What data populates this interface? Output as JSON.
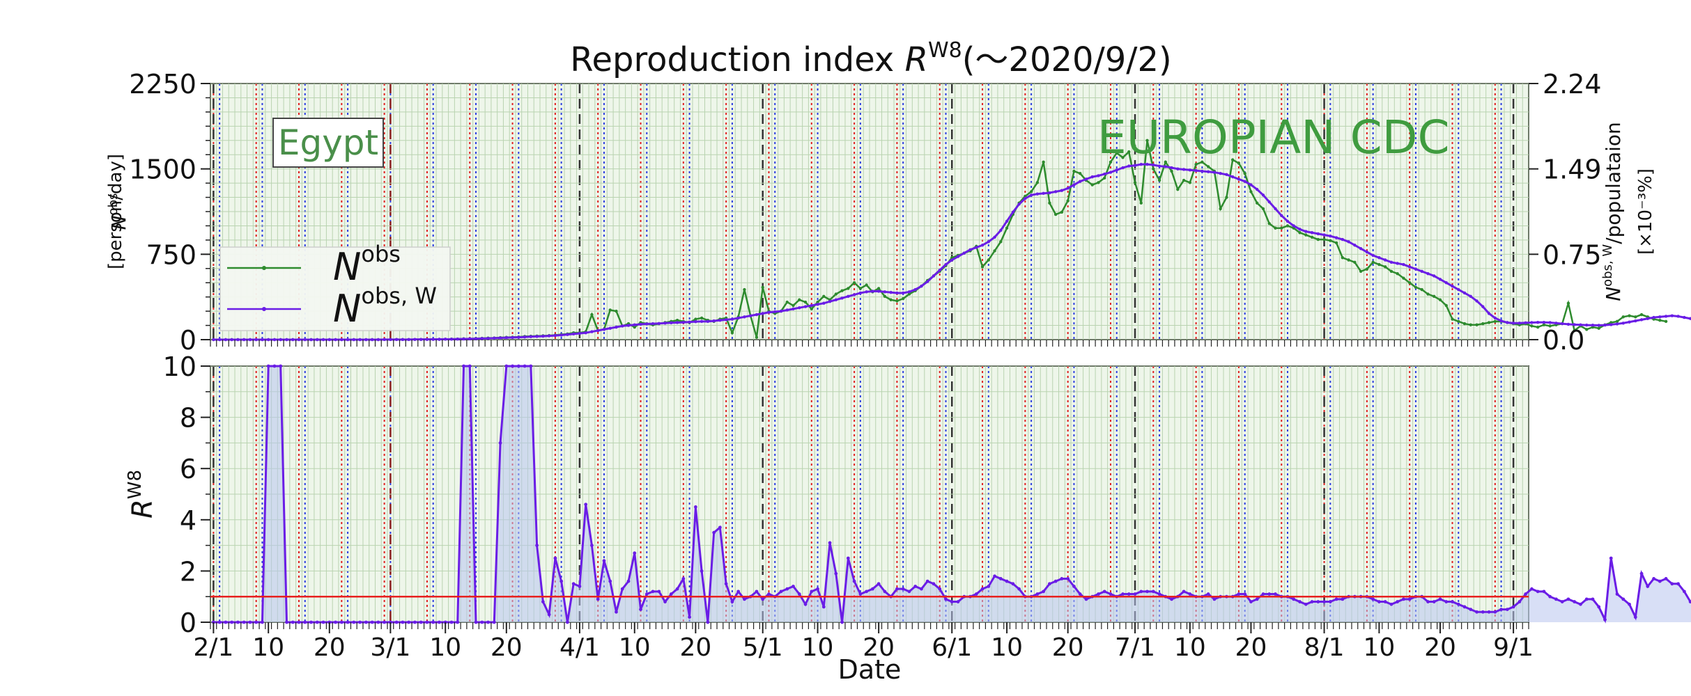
{
  "chart_data": [
    {
      "type": "line",
      "title": "Reproduction index R^W8(～2020/9/2)",
      "title_parts": {
        "prefix": "Reproduction index ",
        "symbol": "R",
        "sup": "W8",
        "suffix": "(～2020/9/2)"
      },
      "country_label": "Egypt",
      "source_label": "EUROPIAN CDC",
      "ylabel_left": {
        "symbol": "N",
        "sup": "obs",
        "unit": "[person/day]"
      },
      "ylabel_right": {
        "symbol": "N",
        "sup": "obs, W",
        "rest": "/populataion",
        "unit": "[×10⁻³%]"
      },
      "ylim": [
        0,
        2250
      ],
      "yticks": [
        "0",
        "750",
        "1500",
        "2250"
      ],
      "yticks_right": [
        "0.0",
        "0.75",
        "1.49",
        "2.24"
      ],
      "grid": true,
      "legend_position": "center-left",
      "legend": [
        "N^obs",
        "N^obs,W"
      ],
      "legend_parts": [
        {
          "symbol": "N",
          "sup": "obs"
        },
        {
          "symbol": "N",
          "sup": "obs, W"
        }
      ],
      "x_start": "2020-02-01",
      "series": [
        {
          "name": "N^obs",
          "color": "#2e8b2e",
          "values": [
            0,
            0,
            0,
            0,
            0,
            0,
            0,
            0,
            0,
            0,
            0,
            0,
            0,
            0,
            1,
            0,
            0,
            0,
            0,
            0,
            0,
            0,
            0,
            0,
            0,
            0,
            0,
            0,
            1,
            1,
            2,
            1,
            1,
            2,
            2,
            3,
            3,
            3,
            4,
            5,
            6,
            8,
            8,
            10,
            12,
            14,
            15,
            18,
            20,
            22,
            24,
            28,
            30,
            32,
            34,
            36,
            40,
            45,
            50,
            60,
            60,
            70,
            220,
            80,
            90,
            260,
            250,
            120,
            140,
            110,
            150,
            140,
            130,
            140,
            150,
            160,
            170,
            160,
            150,
            180,
            190,
            170,
            160,
            180,
            190,
            60,
            200,
            440,
            210,
            20,
            460,
            250,
            230,
            250,
            330,
            300,
            350,
            330,
            270,
            330,
            380,
            350,
            400,
            430,
            450,
            500,
            450,
            480,
            420,
            450,
            380,
            350,
            340,
            360,
            400,
            430,
            470,
            520,
            560,
            600,
            650,
            720,
            740,
            760,
            780,
            820,
            640,
            700,
            780,
            860,
            980,
            1100,
            1200,
            1260,
            1300,
            1380,
            1560,
            1200,
            1100,
            1120,
            1220,
            1480,
            1460,
            1400,
            1360,
            1380,
            1420,
            1560,
            1640,
            1600,
            1650,
            1380,
            1200,
            1750,
            1500,
            1400,
            1560,
            1480,
            1320,
            1400,
            1380,
            1540,
            1560,
            1520,
            1480,
            1150,
            1250,
            1580,
            1550,
            1460,
            1300,
            1200,
            1150,
            1020,
            980,
            980,
            1000,
            980,
            940,
            920,
            900,
            880,
            880,
            870,
            850,
            720,
            700,
            680,
            600,
            620,
            680,
            660,
            640,
            600,
            580,
            540,
            500,
            460,
            440,
            400,
            380,
            350,
            300,
            180,
            160,
            140,
            130,
            130,
            140,
            150,
            160,
            160,
            150,
            140,
            130,
            140,
            120,
            110,
            130,
            120,
            130,
            140,
            320,
            80,
            120,
            90,
            110,
            100,
            130,
            150,
            160,
            200,
            210,
            200,
            220,
            200,
            180,
            170,
            160
          ]
        },
        {
          "name": "N^obs,W",
          "color": "#6a1de6",
          "values": [
            0,
            0,
            0,
            0,
            0,
            0,
            0,
            0,
            0,
            0,
            0,
            0,
            0,
            0,
            0,
            0,
            0,
            0,
            0,
            0,
            0,
            0,
            0,
            0,
            0,
            0,
            0,
            0,
            1,
            1,
            1,
            1,
            1,
            2,
            2,
            2,
            3,
            3,
            4,
            4,
            5,
            6,
            7,
            8,
            10,
            11,
            13,
            15,
            17,
            19,
            21,
            23,
            26,
            28,
            30,
            33,
            36,
            40,
            45,
            50,
            55,
            60,
            70,
            80,
            90,
            100,
            110,
            120,
            125,
            130,
            135,
            138,
            140,
            142,
            145,
            148,
            150,
            152,
            155,
            158,
            160,
            160,
            165,
            170,
            175,
            180,
            190,
            200,
            210,
            220,
            230,
            240,
            245,
            250,
            260,
            270,
            280,
            290,
            300,
            310,
            320,
            335,
            350,
            365,
            380,
            395,
            410,
            420,
            425,
            425,
            420,
            415,
            410,
            410,
            420,
            440,
            470,
            510,
            560,
            610,
            660,
            700,
            730,
            760,
            790,
            810,
            830,
            860,
            900,
            960,
            1040,
            1120,
            1190,
            1240,
            1270,
            1280,
            1285,
            1290,
            1300,
            1310,
            1330,
            1360,
            1390,
            1410,
            1430,
            1440,
            1455,
            1470,
            1490,
            1510,
            1525,
            1530,
            1540,
            1540,
            1535,
            1525,
            1520,
            1510,
            1500,
            1495,
            1490,
            1485,
            1480,
            1475,
            1470,
            1460,
            1450,
            1430,
            1410,
            1390,
            1360,
            1320,
            1270,
            1210,
            1150,
            1090,
            1040,
            1000,
            970,
            950,
            940,
            930,
            920,
            910,
            895,
            880,
            860,
            830,
            800,
            770,
            740,
            720,
            700,
            680,
            670,
            660,
            640,
            620,
            600,
            580,
            560,
            530,
            500,
            470,
            440,
            410,
            380,
            340,
            290,
            230,
            190,
            165,
            150,
            145,
            145,
            148,
            150,
            152,
            152,
            150,
            145,
            140,
            135,
            132,
            130,
            128,
            127,
            126,
            128,
            132,
            138,
            145,
            155,
            165,
            175,
            185,
            195,
            200,
            205,
            210,
            205,
            195,
            185,
            175,
            160
          ]
        }
      ]
    },
    {
      "type": "area",
      "ylabel": {
        "symbol": "R",
        "sup": "W8"
      },
      "xlabel": "Date",
      "ylim": [
        0,
        10
      ],
      "yticks": [
        "0",
        "2",
        "4",
        "6",
        "8",
        "10"
      ],
      "xtick_labels": [
        "2/1",
        "10",
        "20",
        "3/1",
        "10",
        "20",
        "4/1",
        "10",
        "20",
        "5/1",
        "10",
        "20",
        "6/1",
        "10",
        "20",
        "7/1",
        "10",
        "20",
        "8/1",
        "10",
        "20",
        "9/1"
      ],
      "reference_line": {
        "y": 1,
        "color": "#e8201f"
      },
      "grid": true,
      "x_start": "2020-02-01",
      "series": [
        {
          "name": "R^W8",
          "color": "#6a1de6",
          "values": [
            0,
            0,
            0,
            0,
            0,
            0,
            0,
            0,
            0,
            10,
            10,
            10,
            0,
            0,
            0,
            0,
            0,
            0,
            0,
            0,
            0,
            0,
            0,
            0,
            0,
            0,
            0,
            0,
            0,
            0,
            0,
            0,
            0,
            0,
            0,
            0,
            0,
            0,
            0,
            0,
            0,
            10,
            10,
            0,
            0,
            0,
            0,
            7,
            10,
            10,
            10,
            10,
            10,
            3,
            0.8,
            0.3,
            2.5,
            1.6,
            0,
            1.5,
            1.4,
            4.6,
            3,
            0.9,
            2.4,
            1.6,
            0.4,
            1.3,
            1.6,
            2.7,
            0.5,
            1.1,
            1.2,
            1.2,
            0.8,
            1.1,
            1.3,
            1.7,
            0.2,
            4.5,
            2,
            0,
            3.5,
            3.7,
            1.5,
            0.8,
            1.2,
            0.9,
            1,
            1.2,
            0.9,
            1.1,
            1,
            1.2,
            1.3,
            1.4,
            1.1,
            0.7,
            1.2,
            1.3,
            0.6,
            3.1,
            1.9,
            0,
            2.5,
            1.6,
            1.1,
            1.2,
            1.3,
            1.5,
            1.2,
            1,
            1.3,
            1.3,
            1.2,
            1.4,
            1.3,
            1.6,
            1.5,
            1.3,
            0.9,
            0.8,
            0.8,
            1,
            1,
            1.1,
            1.3,
            1.4,
            1.8,
            1.7,
            1.6,
            1.5,
            1.3,
            1,
            1,
            1.1,
            1.2,
            1.5,
            1.6,
            1.7,
            1.7,
            1.4,
            1.1,
            0.9,
            1,
            1.1,
            1.2,
            1.1,
            1,
            1.1,
            1.1,
            1.1,
            1.2,
            1.2,
            1.2,
            1.1,
            1,
            0.9,
            1,
            1.2,
            1.1,
            1,
            1,
            1.1,
            0.9,
            1,
            1,
            1,
            1.1,
            1.1,
            0.8,
            0.9,
            1.1,
            1.1,
            1.1,
            1,
            1,
            0.9,
            0.8,
            0.7,
            0.8,
            0.8,
            0.8,
            0.8,
            0.9,
            0.9,
            1,
            1,
            1,
            1,
            0.9,
            0.8,
            0.8,
            0.7,
            0.8,
            0.9,
            0.9,
            1,
            1,
            0.8,
            0.8,
            0.9,
            0.8,
            0.8,
            0.7,
            0.6,
            0.5,
            0.4,
            0.4,
            0.4,
            0.4,
            0.5,
            0.5,
            0.6,
            0.8,
            1.1,
            1.3,
            1.2,
            1.2,
            1,
            0.9,
            0.8,
            0.9,
            0.8,
            0.7,
            0.9,
            0.9,
            0.6,
            0.1,
            2.5,
            1.1,
            0.9,
            0.7,
            0.2,
            1.9,
            1.4,
            1.7,
            1.6,
            1.7,
            1.5,
            1.5,
            1.2,
            0.8,
            0.8,
            0.7,
            0.7,
            0.7
          ]
        }
      ]
    }
  ]
}
